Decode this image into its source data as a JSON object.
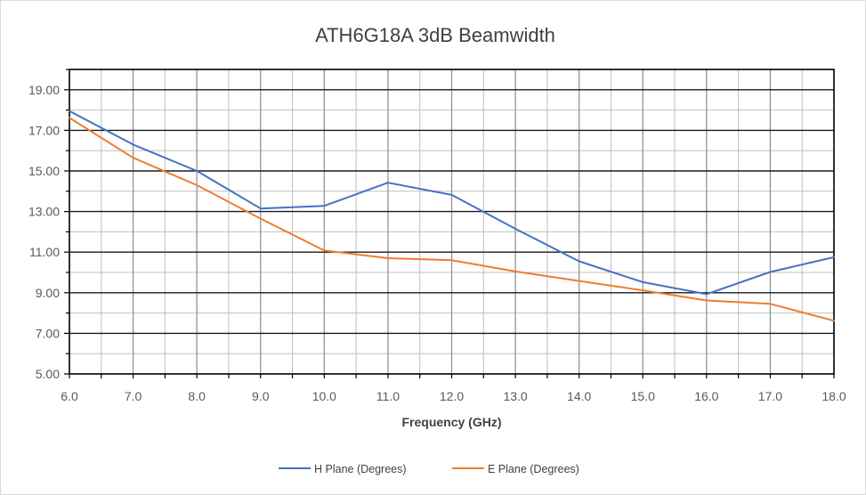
{
  "chart_data": {
    "type": "line",
    "title": "ATH6G18A 3dB Beamwidth",
    "xlabel": "Frequency (GHz)",
    "ylabel": "",
    "x": [
      6.0,
      7.0,
      8.0,
      9.0,
      10.0,
      11.0,
      12.0,
      13.0,
      14.0,
      15.0,
      16.0,
      17.0,
      18.0
    ],
    "x_tick_labels": [
      "6.0",
      "7.0",
      "8.0",
      "9.0",
      "10.0",
      "11.0",
      "12.0",
      "13.0",
      "14.0",
      "15.0",
      "16.0",
      "17.0",
      "18.0"
    ],
    "y_tick_labels": [
      "5.00",
      "7.00",
      "9.00",
      "11.00",
      "13.00",
      "15.00",
      "17.00",
      "19.00"
    ],
    "xlim": [
      6.0,
      18.0
    ],
    "ylim": [
      5.0,
      20.0
    ],
    "grid": true,
    "legend_position": "bottom",
    "series": [
      {
        "name": "H Plane (Degrees)",
        "color": "#4472c4",
        "values": [
          17.95,
          16.3,
          15.0,
          13.15,
          13.28,
          14.42,
          13.82,
          12.15,
          10.55,
          9.52,
          8.93,
          10.02,
          10.75
        ]
      },
      {
        "name": "E Plane (Degrees)",
        "color": "#ed7d31",
        "values": [
          17.62,
          15.65,
          14.3,
          12.65,
          11.08,
          10.7,
          10.6,
          10.05,
          9.58,
          9.12,
          8.62,
          8.45,
          7.62
        ]
      }
    ]
  }
}
